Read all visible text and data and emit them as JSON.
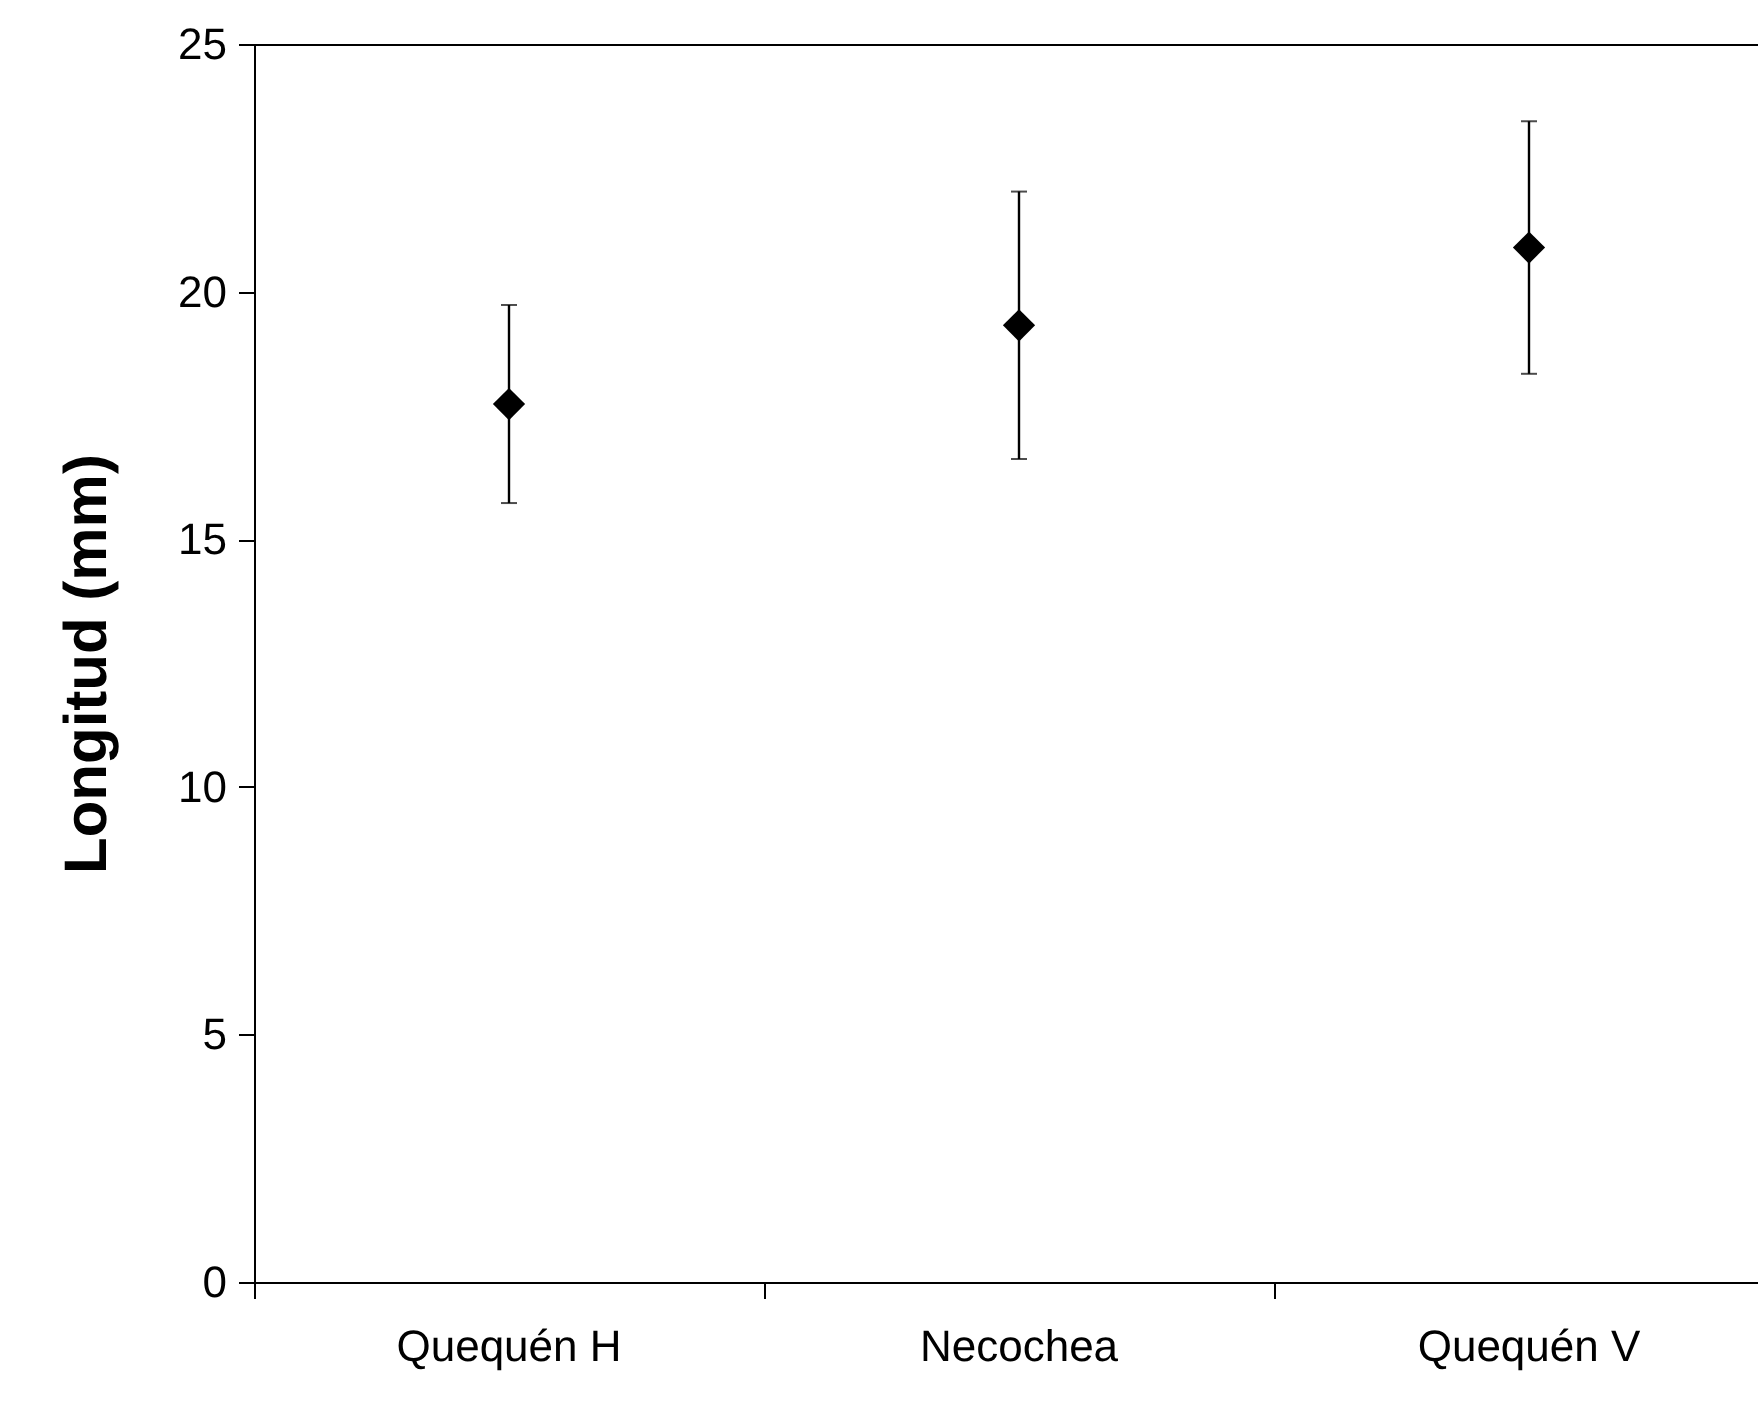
{
  "chart_data": {
    "type": "scatter",
    "ylabel": "Longitud (mm)",
    "categories": [
      "Quequén H",
      "Necochea",
      "Quequén V"
    ],
    "values": [
      17.73,
      19.32,
      20.89
    ],
    "errors": [
      2.0,
      2.7,
      2.55
    ],
    "color": "#000000",
    "marker": "diamond",
    "ylim": [
      0,
      25
    ],
    "yticks": [
      0,
      5,
      10,
      15,
      20,
      25
    ],
    "grid": false
  }
}
